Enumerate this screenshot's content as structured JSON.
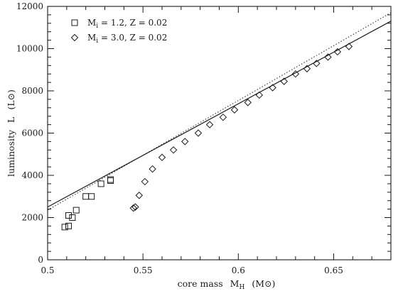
{
  "chart_data": {
    "type": "scatter",
    "x_axis": {
      "label": "core mass",
      "symbol": "M",
      "symbol_sub": "H",
      "unit": "(M⊙)",
      "range": [
        0.5,
        0.68
      ],
      "ticks": [
        0.5,
        0.55,
        0.6,
        0.65
      ],
      "tick_labels": [
        "0.5",
        "0.55",
        "0.6",
        "0.65"
      ],
      "minor_step": 0.01
    },
    "y_axis": {
      "label": "luminosity",
      "symbol": "L",
      "unit": "(L⊙)",
      "range": [
        0,
        12000
      ],
      "ticks": [
        0,
        2000,
        4000,
        6000,
        8000,
        10000,
        12000
      ],
      "tick_labels": [
        "0",
        "2000",
        "4000",
        "6000",
        "8000",
        "10000",
        "12000"
      ],
      "minor_step": 400
    },
    "legend": {
      "position": "top-left",
      "entries": [
        {
          "marker": "square",
          "text_pre": "M",
          "text_sub": "i",
          "text_post": " = 1.2, Z = 0.02"
        },
        {
          "marker": "diamond",
          "text_pre": "M",
          "text_sub": "i",
          "text_post": " = 3.0, Z = 0.02"
        }
      ]
    },
    "series": [
      {
        "marker": "square",
        "points": [
          [
            0.509,
            1550
          ],
          [
            0.511,
            1600
          ],
          [
            0.511,
            2100
          ],
          [
            0.513,
            2000
          ],
          [
            0.515,
            2350
          ],
          [
            0.52,
            3000
          ],
          [
            0.523,
            3000
          ],
          [
            0.528,
            3600
          ],
          [
            0.533,
            3750
          ],
          [
            0.533,
            3800
          ]
        ]
      },
      {
        "marker": "diamond",
        "points": [
          [
            0.545,
            2450
          ],
          [
            0.546,
            2500
          ],
          [
            0.548,
            3050
          ],
          [
            0.551,
            3700
          ],
          [
            0.555,
            4300
          ],
          [
            0.56,
            4850
          ],
          [
            0.566,
            5200
          ],
          [
            0.572,
            5600
          ],
          [
            0.579,
            6000
          ],
          [
            0.585,
            6400
          ],
          [
            0.592,
            6750
          ],
          [
            0.598,
            7100
          ],
          [
            0.605,
            7450
          ],
          [
            0.611,
            7800
          ],
          [
            0.618,
            8150
          ],
          [
            0.624,
            8450
          ],
          [
            0.63,
            8800
          ],
          [
            0.636,
            9050
          ],
          [
            0.641,
            9300
          ],
          [
            0.647,
            9600
          ],
          [
            0.652,
            9850
          ],
          [
            0.658,
            10100
          ]
        ]
      }
    ],
    "lines": [
      {
        "style": "solid",
        "points": [
          [
            0.5,
            2500
          ],
          [
            0.68,
            11300
          ]
        ]
      },
      {
        "style": "dotted",
        "points": [
          [
            0.5,
            2350
          ],
          [
            0.68,
            11700
          ]
        ]
      }
    ]
  }
}
